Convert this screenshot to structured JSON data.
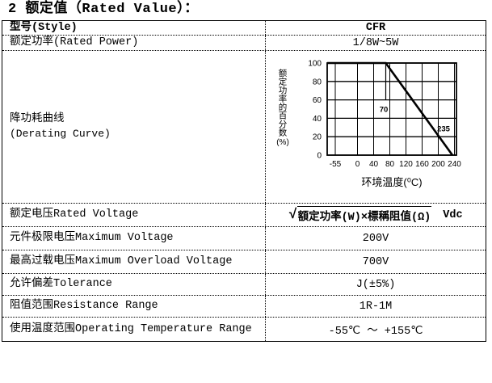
{
  "page": {
    "title": "2 额定值（Rated Value）："
  },
  "table": {
    "rows": [
      {
        "label": "型号(Style)",
        "value": "CFR"
      },
      {
        "label": "额定功率(Rated Power)",
        "value": "1/8W~5W"
      },
      {
        "label_line1": "降功耗曲线",
        "label_line2": "(Derating Curve)"
      },
      {
        "label": "额定电压Rated Voltage"
      },
      {
        "label": "元件极限电压Maximum Voltage",
        "value": "200V"
      },
      {
        "label": "最高过载电压Maximum Overload Voltage",
        "value": "700V"
      },
      {
        "label": "允许偏差Tolerance",
        "value": "J(±5%)"
      },
      {
        "label": "阻值范围Resistance Range",
        "value": "1R-1M"
      },
      {
        "label": "使用温度范围Operating Temperature Range",
        "value": "-55℃ ～ +155℃"
      }
    ],
    "formula": {
      "radical": "√",
      "expr": "額定功率(W)×標稱阻值(Ω)",
      "unit": "Vdc"
    }
  },
  "chart_data": {
    "type": "line",
    "title": "",
    "xlabel": "环境温度(⁰C)",
    "ylabel": "额定功率的百分数",
    "ylabel_unit": "(%)",
    "x_ticks": [
      -55,
      0,
      40,
      80,
      120,
      160,
      200,
      240
    ],
    "y_ticks": [
      0,
      20,
      40,
      60,
      80,
      100
    ],
    "xlim": [
      -75,
      245
    ],
    "ylim": [
      0,
      100
    ],
    "grid": true,
    "line_color": "#000000",
    "series": [
      {
        "name": "derating-curve",
        "points": [
          [
            -75,
            100
          ],
          [
            70,
            100
          ],
          [
            235,
            0
          ]
        ]
      }
    ],
    "reference_line": {
      "x": 70,
      "from_y": 100,
      "to_y": 60
    },
    "annotations": [
      {
        "text": "70",
        "x": 65,
        "y": 47
      },
      {
        "text": "235",
        "x": 213,
        "y": 26
      }
    ]
  }
}
